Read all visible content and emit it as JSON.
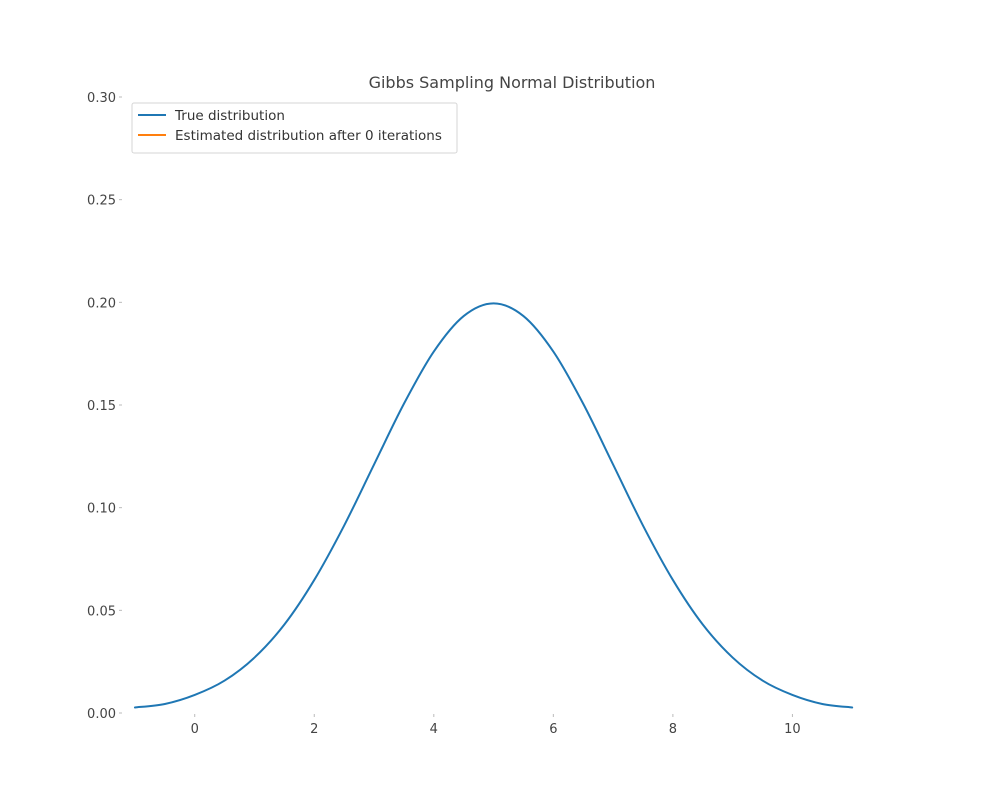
{
  "chart_data": {
    "type": "line",
    "title": "Gibbs Sampling Normal Distribution",
    "xlabel": "",
    "ylabel": "",
    "xlim": [
      -1.2,
      11.8
    ],
    "ylim": [
      0,
      0.3
    ],
    "xticks": [
      0,
      2,
      4,
      6,
      8,
      10
    ],
    "yticks": [
      0.0,
      0.05,
      0.1,
      0.15,
      0.2,
      0.25,
      0.3
    ],
    "ytick_labels": [
      "0.00",
      "0.05",
      "0.10",
      "0.15",
      "0.20",
      "0.25",
      "0.30"
    ],
    "grid": false,
    "legend_position": "top-left",
    "series": [
      {
        "name": "True distribution",
        "color": "#1f77b4",
        "x": [
          -1.0,
          -0.5,
          0.0,
          0.5,
          1.0,
          1.5,
          2.0,
          2.5,
          3.0,
          3.5,
          4.0,
          4.5,
          5.0,
          5.5,
          6.0,
          6.5,
          7.0,
          7.5,
          8.0,
          8.5,
          9.0,
          9.5,
          10.0,
          10.5,
          11.0
        ],
        "y": [
          0.0027,
          0.0044,
          0.0088,
          0.0158,
          0.027,
          0.0431,
          0.0648,
          0.0913,
          0.121,
          0.1506,
          0.176,
          0.1933,
          0.1995,
          0.1933,
          0.176,
          0.1506,
          0.121,
          0.0913,
          0.0648,
          0.0431,
          0.027,
          0.0158,
          0.0088,
          0.0044,
          0.0027
        ]
      },
      {
        "name": "Estimated distribution after 0 iterations",
        "color": "#ff7f0e",
        "x": [],
        "y": []
      }
    ]
  }
}
